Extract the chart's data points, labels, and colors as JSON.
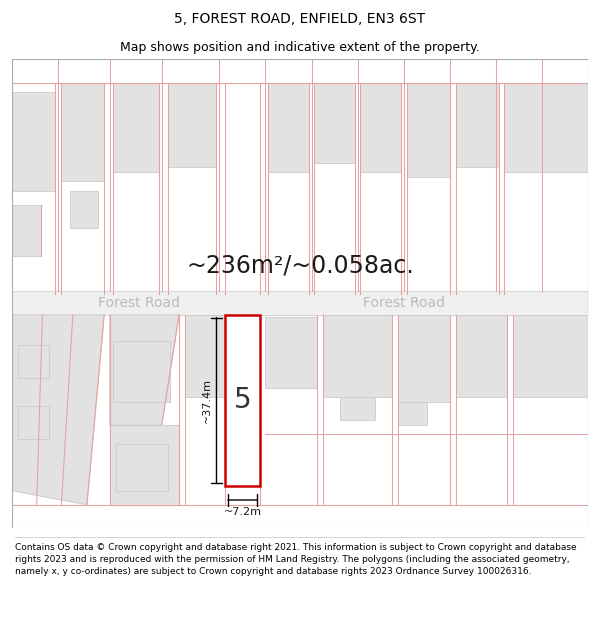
{
  "title": "5, FOREST ROAD, ENFIELD, EN3 6ST",
  "subtitle": "Map shows position and indicative extent of the property.",
  "area_text": "~236m²/~0.058ac.",
  "road_label": "Forest Road",
  "plot_number": "5",
  "dim_height": "~37.4m",
  "dim_width": "~7.2m",
  "footer": "Contains OS data © Crown copyright and database right 2021. This information is subject to Crown copyright and database rights 2023 and is reproduced with the permission of HM Land Registry. The polygons (including the associated geometry, namely x, y co-ordinates) are subject to Crown copyright and database rights 2023 Ordnance Survey 100026316.",
  "bg_color": "#ffffff",
  "map_bg": "#f7f7f7",
  "road_color": "#f0f0f0",
  "building_fill": "#e2e2e2",
  "building_edge": "#cccccc",
  "plot_fill": "#ffffff",
  "red_line_color": "#cc0000",
  "pink_line_color": "#e8a0a0",
  "road_label_color": "#bbbbbb",
  "title_fontsize": 10,
  "subtitle_fontsize": 9,
  "area_fontsize": 17,
  "road_label_fontsize": 10,
  "footer_fontsize": 6.5,
  "plot_num_fontsize": 20,
  "dim_fontsize": 8
}
